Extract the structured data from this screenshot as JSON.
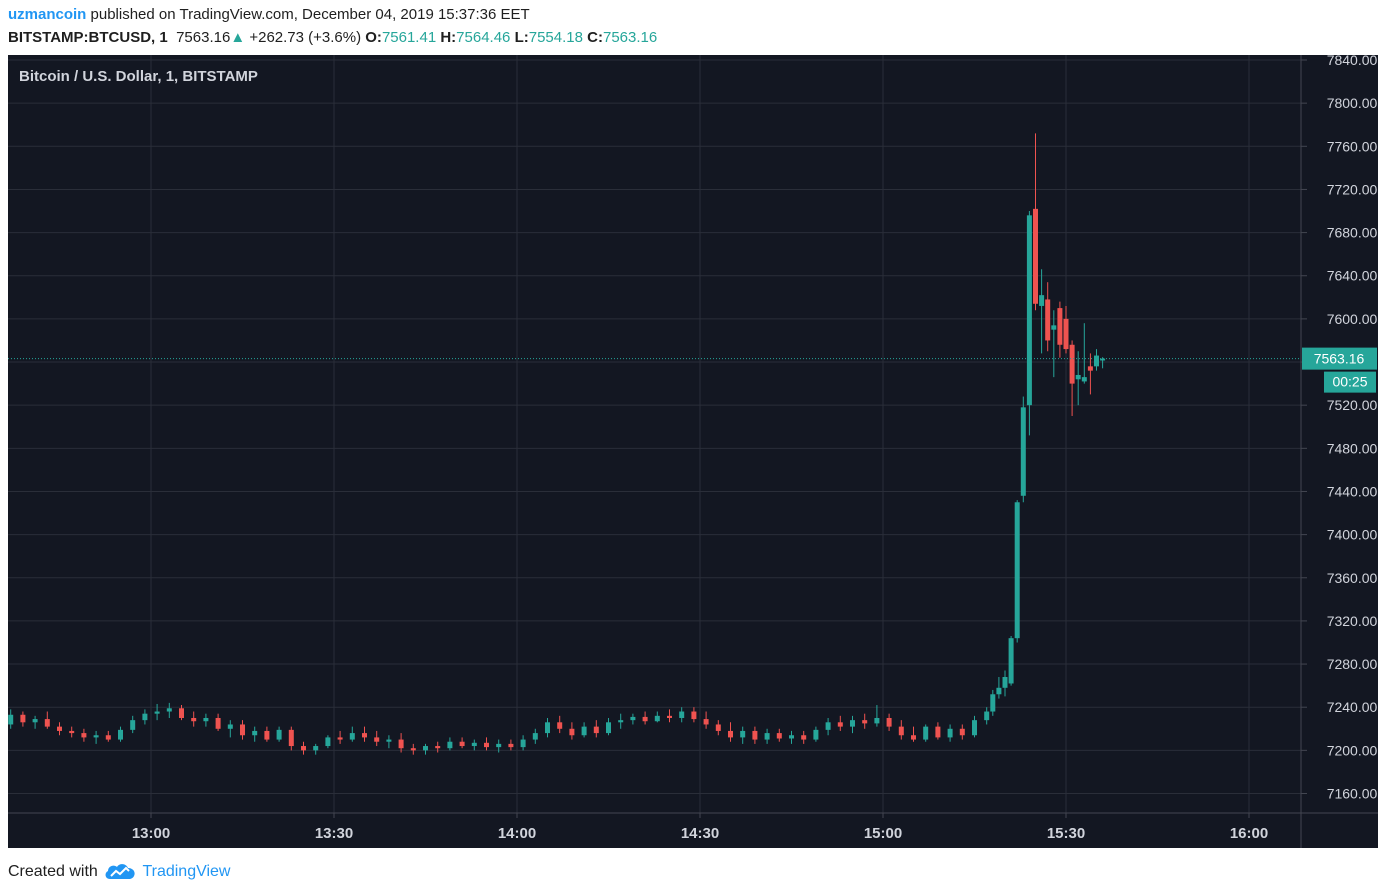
{
  "header": {
    "user": "uzmancoin",
    "published_text": "published on TradingView.com, December 04, 2019 15:37:36 EET",
    "symbol": "BITSTAMP:BTCUSD, 1",
    "last_price": "7563.16",
    "arrow": "▲",
    "change": "+262.73 (+3.6%)",
    "o_label": "O:",
    "o_value": "7561.41",
    "h_label": "H:",
    "h_value": "7564.46",
    "l_label": "L:",
    "l_value": "7554.18",
    "c_label": "C:",
    "c_value": "7563.16"
  },
  "footer": {
    "created_with": "Created with",
    "brand": "TradingView"
  },
  "colors": {
    "background": "#131722",
    "grid": "#2a2e39",
    "up": "#26a69a",
    "down": "#ef5350",
    "axis_text": "#d1d4dc",
    "border": "#434651",
    "accent": "#2196f3"
  },
  "chart_data": {
    "type": "candlestick",
    "title": "Bitcoin / U.S. Dollar, 1, BITSTAMP",
    "interval_minutes": 1,
    "xlabel": "",
    "ylabel": "",
    "ylim": [
      7140,
      7850
    ],
    "xlim": [
      "12:37",
      "16:10"
    ],
    "y_ticks": [
      "7160.00",
      "7200.00",
      "7240.00",
      "7280.00",
      "7320.00",
      "7360.00",
      "7400.00",
      "7440.00",
      "7480.00",
      "7520.00",
      "7560.00",
      "7600.00",
      "7640.00",
      "7680.00",
      "7720.00",
      "7760.00",
      "7800.00",
      "7840.00"
    ],
    "x_ticks": [
      "13:00",
      "13:30",
      "14:00",
      "14:30",
      "15:00",
      "15:30",
      "16:00"
    ],
    "grid": true,
    "last_price": 7563.16,
    "last_price_label": "7563.16",
    "countdown": "00:25",
    "candles": [
      {
        "t": "12:37",
        "o": 7224,
        "h": 7238,
        "l": 7220,
        "c": 7233
      },
      {
        "t": "12:39",
        "o": 7233,
        "h": 7236,
        "l": 7222,
        "c": 7226
      },
      {
        "t": "12:41",
        "o": 7226,
        "h": 7232,
        "l": 7220,
        "c": 7229
      },
      {
        "t": "12:43",
        "o": 7229,
        "h": 7236,
        "l": 7220,
        "c": 7222
      },
      {
        "t": "12:45",
        "o": 7222,
        "h": 7226,
        "l": 7214,
        "c": 7218
      },
      {
        "t": "12:47",
        "o": 7218,
        "h": 7222,
        "l": 7212,
        "c": 7216
      },
      {
        "t": "12:49",
        "o": 7216,
        "h": 7220,
        "l": 7208,
        "c": 7212
      },
      {
        "t": "12:51",
        "o": 7212,
        "h": 7218,
        "l": 7206,
        "c": 7214
      },
      {
        "t": "12:53",
        "o": 7214,
        "h": 7218,
        "l": 7208,
        "c": 7210
      },
      {
        "t": "12:55",
        "o": 7210,
        "h": 7222,
        "l": 7208,
        "c": 7219
      },
      {
        "t": "12:57",
        "o": 7219,
        "h": 7232,
        "l": 7216,
        "c": 7228
      },
      {
        "t": "12:59",
        "o": 7228,
        "h": 7238,
        "l": 7224,
        "c": 7234
      },
      {
        "t": "13:01",
        "o": 7234,
        "h": 7243,
        "l": 7228,
        "c": 7236
      },
      {
        "t": "13:03",
        "o": 7236,
        "h": 7244,
        "l": 7230,
        "c": 7239
      },
      {
        "t": "13:05",
        "o": 7239,
        "h": 7242,
        "l": 7228,
        "c": 7230
      },
      {
        "t": "13:07",
        "o": 7230,
        "h": 7236,
        "l": 7222,
        "c": 7227
      },
      {
        "t": "13:09",
        "o": 7227,
        "h": 7234,
        "l": 7222,
        "c": 7230
      },
      {
        "t": "13:11",
        "o": 7230,
        "h": 7234,
        "l": 7218,
        "c": 7220
      },
      {
        "t": "13:13",
        "o": 7220,
        "h": 7228,
        "l": 7212,
        "c": 7224
      },
      {
        "t": "13:15",
        "o": 7224,
        "h": 7228,
        "l": 7210,
        "c": 7214
      },
      {
        "t": "13:17",
        "o": 7214,
        "h": 7222,
        "l": 7208,
        "c": 7218
      },
      {
        "t": "13:19",
        "o": 7218,
        "h": 7222,
        "l": 7208,
        "c": 7210
      },
      {
        "t": "13:21",
        "o": 7210,
        "h": 7222,
        "l": 7208,
        "c": 7219
      },
      {
        "t": "13:23",
        "o": 7219,
        "h": 7222,
        "l": 7200,
        "c": 7204
      },
      {
        "t": "13:25",
        "o": 7204,
        "h": 7208,
        "l": 7196,
        "c": 7200
      },
      {
        "t": "13:27",
        "o": 7200,
        "h": 7206,
        "l": 7196,
        "c": 7204
      },
      {
        "t": "13:29",
        "o": 7204,
        "h": 7214,
        "l": 7202,
        "c": 7212
      },
      {
        "t": "13:31",
        "o": 7212,
        "h": 7218,
        "l": 7206,
        "c": 7210
      },
      {
        "t": "13:33",
        "o": 7210,
        "h": 7222,
        "l": 7208,
        "c": 7216
      },
      {
        "t": "13:35",
        "o": 7216,
        "h": 7222,
        "l": 7208,
        "c": 7212
      },
      {
        "t": "13:37",
        "o": 7212,
        "h": 7218,
        "l": 7204,
        "c": 7208
      },
      {
        "t": "13:39",
        "o": 7208,
        "h": 7214,
        "l": 7202,
        "c": 7210
      },
      {
        "t": "13:41",
        "o": 7210,
        "h": 7216,
        "l": 7198,
        "c": 7202
      },
      {
        "t": "13:43",
        "o": 7202,
        "h": 7206,
        "l": 7196,
        "c": 7200
      },
      {
        "t": "13:45",
        "o": 7200,
        "h": 7206,
        "l": 7196,
        "c": 7204
      },
      {
        "t": "13:47",
        "o": 7204,
        "h": 7208,
        "l": 7198,
        "c": 7202
      },
      {
        "t": "13:49",
        "o": 7202,
        "h": 7212,
        "l": 7200,
        "c": 7208
      },
      {
        "t": "13:51",
        "o": 7208,
        "h": 7212,
        "l": 7202,
        "c": 7204
      },
      {
        "t": "13:53",
        "o": 7204,
        "h": 7210,
        "l": 7200,
        "c": 7207
      },
      {
        "t": "13:55",
        "o": 7207,
        "h": 7212,
        "l": 7200,
        "c": 7203
      },
      {
        "t": "13:57",
        "o": 7203,
        "h": 7210,
        "l": 7198,
        "c": 7206
      },
      {
        "t": "13:59",
        "o": 7206,
        "h": 7210,
        "l": 7200,
        "c": 7203
      },
      {
        "t": "14:01",
        "o": 7203,
        "h": 7214,
        "l": 7200,
        "c": 7210
      },
      {
        "t": "14:03",
        "o": 7210,
        "h": 7220,
        "l": 7206,
        "c": 7216
      },
      {
        "t": "14:05",
        "o": 7216,
        "h": 7230,
        "l": 7212,
        "c": 7226
      },
      {
        "t": "14:07",
        "o": 7226,
        "h": 7232,
        "l": 7216,
        "c": 7220
      },
      {
        "t": "14:09",
        "o": 7220,
        "h": 7226,
        "l": 7210,
        "c": 7214
      },
      {
        "t": "14:11",
        "o": 7214,
        "h": 7226,
        "l": 7212,
        "c": 7222
      },
      {
        "t": "14:13",
        "o": 7222,
        "h": 7228,
        "l": 7212,
        "c": 7216
      },
      {
        "t": "14:15",
        "o": 7216,
        "h": 7230,
        "l": 7214,
        "c": 7226
      },
      {
        "t": "14:17",
        "o": 7226,
        "h": 7234,
        "l": 7220,
        "c": 7228
      },
      {
        "t": "14:19",
        "o": 7228,
        "h": 7234,
        "l": 7224,
        "c": 7231
      },
      {
        "t": "14:21",
        "o": 7231,
        "h": 7236,
        "l": 7224,
        "c": 7227
      },
      {
        "t": "14:23",
        "o": 7227,
        "h": 7236,
        "l": 7226,
        "c": 7232
      },
      {
        "t": "14:25",
        "o": 7232,
        "h": 7238,
        "l": 7226,
        "c": 7230
      },
      {
        "t": "14:27",
        "o": 7230,
        "h": 7240,
        "l": 7226,
        "c": 7236
      },
      {
        "t": "14:29",
        "o": 7236,
        "h": 7240,
        "l": 7226,
        "c": 7229
      },
      {
        "t": "14:31",
        "o": 7229,
        "h": 7236,
        "l": 7220,
        "c": 7224
      },
      {
        "t": "14:33",
        "o": 7224,
        "h": 7228,
        "l": 7214,
        "c": 7218
      },
      {
        "t": "14:35",
        "o": 7218,
        "h": 7226,
        "l": 7208,
        "c": 7212
      },
      {
        "t": "14:37",
        "o": 7212,
        "h": 7222,
        "l": 7206,
        "c": 7218
      },
      {
        "t": "14:39",
        "o": 7218,
        "h": 7222,
        "l": 7206,
        "c": 7210
      },
      {
        "t": "14:41",
        "o": 7210,
        "h": 7220,
        "l": 7206,
        "c": 7216
      },
      {
        "t": "14:43",
        "o": 7216,
        "h": 7220,
        "l": 7208,
        "c": 7211
      },
      {
        "t": "14:45",
        "o": 7211,
        "h": 7218,
        "l": 7206,
        "c": 7214
      },
      {
        "t": "14:47",
        "o": 7214,
        "h": 7218,
        "l": 7206,
        "c": 7210
      },
      {
        "t": "14:49",
        "o": 7210,
        "h": 7222,
        "l": 7208,
        "c": 7219
      },
      {
        "t": "14:51",
        "o": 7219,
        "h": 7230,
        "l": 7214,
        "c": 7226
      },
      {
        "t": "14:53",
        "o": 7226,
        "h": 7232,
        "l": 7218,
        "c": 7222
      },
      {
        "t": "14:55",
        "o": 7222,
        "h": 7232,
        "l": 7216,
        "c": 7228
      },
      {
        "t": "14:57",
        "o": 7228,
        "h": 7234,
        "l": 7220,
        "c": 7225
      },
      {
        "t": "14:59",
        "o": 7225,
        "h": 7242,
        "l": 7222,
        "c": 7230
      },
      {
        "t": "15:01",
        "o": 7230,
        "h": 7234,
        "l": 7218,
        "c": 7222
      },
      {
        "t": "15:03",
        "o": 7222,
        "h": 7228,
        "l": 7210,
        "c": 7214
      },
      {
        "t": "15:05",
        "o": 7214,
        "h": 7222,
        "l": 7208,
        "c": 7210
      },
      {
        "t": "15:07",
        "o": 7210,
        "h": 7224,
        "l": 7208,
        "c": 7222
      },
      {
        "t": "15:09",
        "o": 7222,
        "h": 7226,
        "l": 7210,
        "c": 7212
      },
      {
        "t": "15:11",
        "o": 7212,
        "h": 7224,
        "l": 7208,
        "c": 7220
      },
      {
        "t": "15:13",
        "o": 7220,
        "h": 7224,
        "l": 7210,
        "c": 7214
      },
      {
        "t": "15:15",
        "o": 7214,
        "h": 7232,
        "l": 7212,
        "c": 7228
      },
      {
        "t": "15:17",
        "o": 7228,
        "h": 7240,
        "l": 7224,
        "c": 7236
      },
      {
        "t": "15:18",
        "o": 7236,
        "h": 7256,
        "l": 7232,
        "c": 7252
      },
      {
        "t": "15:19",
        "o": 7252,
        "h": 7268,
        "l": 7248,
        "c": 7258
      },
      {
        "t": "15:20",
        "o": 7258,
        "h": 7274,
        "l": 7250,
        "c": 7268
      },
      {
        "t": "15:21",
        "o": 7262,
        "h": 7306,
        "l": 7260,
        "c": 7304
      },
      {
        "t": "15:22",
        "o": 7304,
        "h": 7432,
        "l": 7300,
        "c": 7430
      },
      {
        "t": "15:23",
        "o": 7436,
        "h": 7528,
        "l": 7430,
        "c": 7518
      },
      {
        "t": "15:24",
        "o": 7520,
        "h": 7700,
        "l": 7492,
        "c": 7696
      },
      {
        "t": "15:25",
        "o": 7702,
        "h": 7772,
        "l": 7608,
        "c": 7614
      },
      {
        "t": "15:26",
        "o": 7612,
        "h": 7646,
        "l": 7568,
        "c": 7622
      },
      {
        "t": "15:27",
        "o": 7618,
        "h": 7634,
        "l": 7570,
        "c": 7580
      },
      {
        "t": "15:28",
        "o": 7590,
        "h": 7608,
        "l": 7546,
        "c": 7594
      },
      {
        "t": "15:29",
        "o": 7610,
        "h": 7616,
        "l": 7564,
        "c": 7576
      },
      {
        "t": "15:30",
        "o": 7600,
        "h": 7612,
        "l": 7568,
        "c": 7572
      },
      {
        "t": "15:31",
        "o": 7576,
        "h": 7580,
        "l": 7510,
        "c": 7540
      },
      {
        "t": "15:32",
        "o": 7544,
        "h": 7570,
        "l": 7520,
        "c": 7548
      },
      {
        "t": "15:33",
        "o": 7542,
        "h": 7596,
        "l": 7540,
        "c": 7546
      },
      {
        "t": "15:34",
        "o": 7556,
        "h": 7568,
        "l": 7530,
        "c": 7552
      },
      {
        "t": "15:35",
        "o": 7556,
        "h": 7572,
        "l": 7552,
        "c": 7566
      },
      {
        "t": "15:36",
        "o": 7561.41,
        "h": 7564.46,
        "l": 7554.18,
        "c": 7563.16
      }
    ]
  }
}
